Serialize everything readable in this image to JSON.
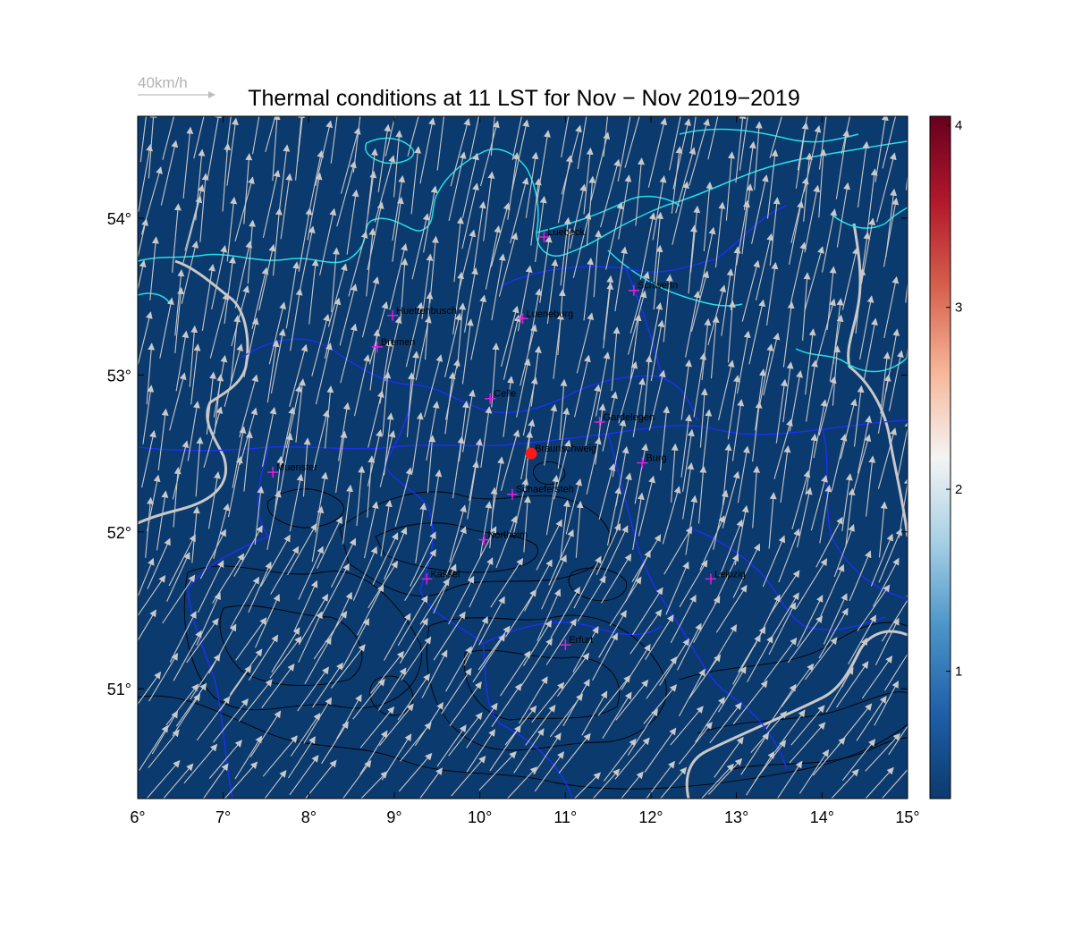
{
  "title": "Thermal conditions at 11 LST for Nov − Nov  2019−2019",
  "reference_arrow": {
    "label": "40km/h",
    "speed_kmh": 40,
    "color": "#bdbdbd"
  },
  "map": {
    "lon_range": [
      6,
      15
    ],
    "lat_range": [
      50.3,
      54.65
    ],
    "background_color": "#0b3a6e",
    "coast_color": "#22e0e8",
    "border_color": "#1f2fff",
    "contour_color": "#000000",
    "river_color": "#c8c8c8",
    "wind_color": "#c8c8c8",
    "station_marker_color": "#e020e0",
    "highlight_color": "#ff1a1a"
  },
  "x_ticks": [
    "6°",
    "7°",
    "8°",
    "9°",
    "10°",
    "11°",
    "12°",
    "13°",
    "14°",
    "15°"
  ],
  "x_tick_values": [
    6,
    7,
    8,
    9,
    10,
    11,
    12,
    13,
    14,
    15
  ],
  "y_ticks": [
    "51°",
    "52°",
    "53°",
    "54°"
  ],
  "y_tick_values": [
    51,
    52,
    53,
    54
  ],
  "colorbar": {
    "min": 0.3,
    "max": 4.05,
    "ticks": [
      "1",
      "2",
      "3",
      "4"
    ],
    "tick_values": [
      1,
      2,
      3,
      4
    ],
    "colors": [
      "#0b3a6e",
      "#1f5fa8",
      "#4a93c7",
      "#a6cfe4",
      "#f4f4f4",
      "#f7b699",
      "#d6604d",
      "#b2182b",
      "#67001f"
    ]
  },
  "highlight": {
    "name": "Braunschweig",
    "lon": 10.6,
    "lat": 52.5
  },
  "stations": [
    {
      "name": "Luebeck",
      "lon": 10.75,
      "lat": 53.88
    },
    {
      "name": "Schwerin",
      "lon": 11.8,
      "lat": 53.54
    },
    {
      "name": "Huettenbusch",
      "lon": 8.98,
      "lat": 53.38
    },
    {
      "name": "Lueneburg",
      "lon": 10.5,
      "lat": 53.36
    },
    {
      "name": "Bremen",
      "lon": 8.8,
      "lat": 53.18
    },
    {
      "name": "Celle",
      "lon": 10.12,
      "lat": 52.85
    },
    {
      "name": "Gardelegen",
      "lon": 11.4,
      "lat": 52.7
    },
    {
      "name": "Braunschweig",
      "lon": 10.6,
      "lat": 52.5
    },
    {
      "name": "Burg",
      "lon": 11.9,
      "lat": 52.44
    },
    {
      "name": "Muenster",
      "lon": 7.58,
      "lat": 52.38
    },
    {
      "name": "Schaefersteh",
      "lon": 10.38,
      "lat": 52.24
    },
    {
      "name": "Northeim",
      "lon": 10.05,
      "lat": 51.95
    },
    {
      "name": "Kassel",
      "lon": 9.38,
      "lat": 51.7
    },
    {
      "name": "Leipzig",
      "lon": 12.7,
      "lat": 51.7
    },
    {
      "name": "Erfurt",
      "lon": 11.0,
      "lat": 51.28
    }
  ],
  "wind_field": {
    "units": "km/h",
    "description_of_flow": "south-southwesterly, stronger in the north",
    "mean_direction_deg_from": 190,
    "speed_range_kmh": [
      20,
      45
    ]
  }
}
